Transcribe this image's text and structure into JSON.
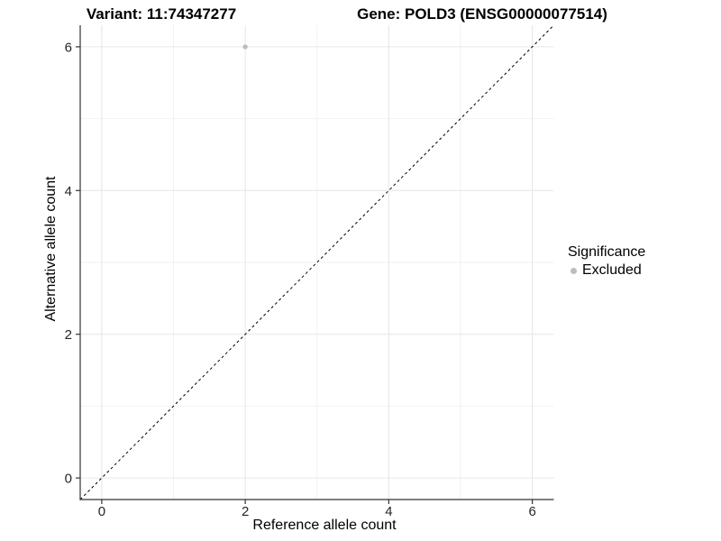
{
  "titles": {
    "variant": "Variant: 11:74347277",
    "gene": "Gene: POLD3 (ENSG00000077514)"
  },
  "legend": {
    "title": "Significance",
    "items": [
      {
        "label": "Excluded",
        "color": "#bdbdbd"
      }
    ]
  },
  "chart_data": {
    "type": "scatter",
    "xlabel": "Reference allele count",
    "ylabel": "Alternative allele count",
    "xlim": [
      -0.3,
      6.3
    ],
    "ylim": [
      -0.3,
      6.3
    ],
    "x_ticks": [
      0,
      2,
      4,
      6
    ],
    "y_ticks": [
      0,
      2,
      4,
      6
    ],
    "x_minor_ticks": [
      1,
      3,
      5
    ],
    "y_minor_ticks": [
      1,
      3,
      5
    ],
    "grid": true,
    "legend_position": "right",
    "series": [
      {
        "name": "Excluded",
        "color": "#bdbdbd",
        "points": [
          {
            "x": 2,
            "y": 6
          }
        ]
      }
    ],
    "reference_line": {
      "type": "identity",
      "style": "dashed",
      "color": "#000000",
      "from": [
        -0.3,
        -0.3
      ],
      "to": [
        6.3,
        6.3
      ]
    }
  },
  "colors": {
    "background": "#ffffff",
    "grid_major": "#e6e6e6",
    "grid_minor": "#f2f2f2",
    "axis_line": "#333333",
    "tick_mark": "#333333",
    "tick_text": "#262626",
    "point": "#bdbdbd"
  }
}
